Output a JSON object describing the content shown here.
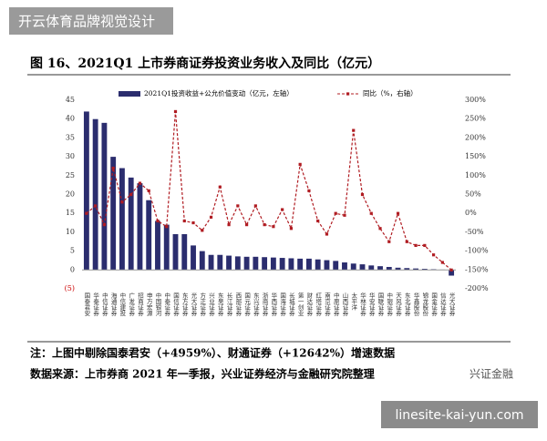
{
  "watermark": "开云体育品牌视觉设计",
  "site": "linesite-kai-yun.com",
  "logo": "兴证金融",
  "chart_data": {
    "type": "bar-line",
    "title": "图 16、2021Q1 上市券商证券投资业务收入及同比（亿元）",
    "categories": [
      "国泰君安",
      "华泰证券",
      "中信证券",
      "海通证券",
      "中信建投",
      "广发证券",
      "招商证券",
      "申万宏源",
      "中国银河",
      "中泰证券",
      "国信证券",
      "东方证券",
      "光大证券",
      "方正证券",
      "兴业证券",
      "东吴证券",
      "长江证券",
      "西部证券",
      "国元证券",
      "东兴证券",
      "浙商证券",
      "华西证券",
      "国海证券",
      "长城证券",
      "第一创业",
      "财达证券",
      "红塔证券",
      "南京证券",
      "中原证券",
      "山西证券",
      "太平洋",
      "华林证券",
      "华安证券",
      "国联证券",
      "中银证券",
      "天风证券",
      "东北证券",
      "华鑫股份",
      "锦龙股份",
      "国金证券",
      "信达证券",
      "光大证券"
    ],
    "series": [
      {
        "name": "2021Q1投资收益+公允价值变动（亿元，左轴）",
        "color": "#2b2d6e",
        "values": [
          42,
          40,
          39,
          30,
          27,
          24.5,
          23,
          18.5,
          13,
          12,
          9.5,
          9.5,
          6.5,
          5,
          4,
          4,
          3.8,
          3.6,
          3.5,
          3.5,
          3.4,
          3.3,
          3.2,
          3.1,
          3,
          3,
          2.8,
          2.6,
          2.4,
          2,
          1.7,
          1.5,
          1.2,
          1,
          0.8,
          0.6,
          0.5,
          0.4,
          0.3,
          0.2,
          0.1,
          -1.5
        ]
      },
      {
        "name": "同比（%，右轴）",
        "color": "#b01c22",
        "axis": "y2",
        "values": [
          0,
          20,
          -30,
          120,
          30,
          50,
          80,
          60,
          -20,
          -35,
          270,
          -20,
          -25,
          -45,
          -10,
          70,
          -30,
          20,
          -30,
          20,
          -30,
          -35,
          10,
          -40,
          130,
          60,
          -20,
          -55,
          0,
          -5,
          220,
          50,
          0,
          -40,
          -75,
          0,
          -75,
          -85,
          -85,
          -110,
          -130,
          -150
        ]
      }
    ],
    "ylim": [
      -5,
      45
    ],
    "yticks": [
      {
        "value": -5,
        "label": "(5)"
      },
      0,
      5,
      10,
      15,
      20,
      25,
      30,
      35,
      40,
      45
    ],
    "y2lim": [
      -200,
      300
    ],
    "y2ticks": [
      {
        "value": -200,
        "label": "-200%"
      },
      {
        "value": -150,
        "label": "-150%"
      },
      {
        "value": -100,
        "label": "-100%"
      },
      {
        "value": -50,
        "label": "-50%"
      },
      {
        "value": 0,
        "label": "0%"
      },
      {
        "value": 50,
        "label": "50%"
      },
      {
        "value": 100,
        "label": "100%"
      },
      {
        "value": 150,
        "label": "150%"
      },
      {
        "value": 200,
        "label": "200%"
      },
      {
        "value": 250,
        "label": "250%"
      },
      {
        "value": 300,
        "label": "300%"
      }
    ],
    "notes": [
      "注：上图中剔除国泰君安（+4959%）、财通证券（+12642%）增速数据",
      "数据来源：上市券商 2021 年一季报，兴业证券经济与金融研究院整理"
    ]
  }
}
